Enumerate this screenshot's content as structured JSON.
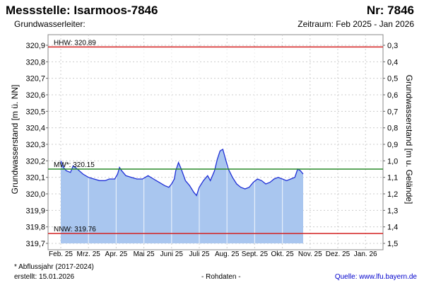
{
  "header": {
    "title_left": "Messstelle: Isarmoos-7846",
    "title_right": "Nr: 7846",
    "subtitle_left": "Grundwasserleiter:",
    "subtitle_right": "Zeitraum: Feb 2025 - Jan 2026"
  },
  "footer": {
    "note": "* Abflussjahr (2017-2024)",
    "created": "erstellt:  15.01.2026",
    "center": "- Rohdaten -",
    "source_label": "Quelle:",
    "source_link": "www.lfu.bayern.de"
  },
  "colors": {
    "line": "#1f2fd6",
    "fill": "#a9c6ef",
    "hhw": "#d42020",
    "nnw": "#d42020",
    "mw": "#2a8a2a",
    "grid": "#cccccc"
  },
  "chart_data": {
    "type": "area",
    "ylabel_left": "Grundwasserstand [m ü. NN]",
    "ylabel_right": "Grundwasserstand [m u. Gelände]",
    "ylim": [
      319.7,
      320.9
    ],
    "yticks_left": [
      "320,9",
      "320,8",
      "320,7",
      "320,6",
      "320,5",
      "320,4",
      "320,3",
      "320,2",
      "320,1",
      "320,0",
      "319,9",
      "319,8",
      "319,7"
    ],
    "yticks_right": [
      "0,3",
      "0,4",
      "0,5",
      "0,6",
      "0,7",
      "0,8",
      "0,9",
      "1,0",
      "1,1",
      "1,2",
      "1,3",
      "1,4",
      "1,5"
    ],
    "xticks": [
      "Feb. 25",
      "Mrz. 25",
      "Apr. 25",
      "Mai 25",
      "Juni 25",
      "Juli 25",
      "Aug. 25",
      "Sept. 25",
      "Okt. 25",
      "Nov. 25",
      "Dez. 25",
      "Jan. 26"
    ],
    "x_unit": "months since Feb. 25 (0 = Feb 2025)",
    "reference_lines": [
      {
        "key": "hhw",
        "label": "HHW: 320.89",
        "value": 320.89
      },
      {
        "key": "mw",
        "label": "MW*: 320.15",
        "value": 320.15
      },
      {
        "key": "nnw",
        "label": "NNW: 319.76",
        "value": 319.76
      }
    ],
    "series": [
      {
        "name": "Grundwasserstand",
        "points": [
          [
            0.0,
            320.2
          ],
          [
            0.1,
            320.16
          ],
          [
            0.2,
            320.14
          ],
          [
            0.35,
            320.13
          ],
          [
            0.45,
            320.17
          ],
          [
            0.6,
            320.15
          ],
          [
            0.8,
            320.12
          ],
          [
            1.0,
            320.1
          ],
          [
            1.2,
            320.09
          ],
          [
            1.4,
            320.08
          ],
          [
            1.6,
            320.08
          ],
          [
            1.75,
            320.09
          ],
          [
            1.95,
            320.09
          ],
          [
            2.05,
            320.12
          ],
          [
            2.12,
            320.16
          ],
          [
            2.2,
            320.14
          ],
          [
            2.35,
            320.11
          ],
          [
            2.55,
            320.1
          ],
          [
            2.75,
            320.09
          ],
          [
            2.95,
            320.09
          ],
          [
            3.15,
            320.11
          ],
          [
            3.35,
            320.09
          ],
          [
            3.55,
            320.07
          ],
          [
            3.75,
            320.05
          ],
          [
            3.9,
            320.04
          ],
          [
            4.0,
            320.06
          ],
          [
            4.1,
            320.09
          ],
          [
            4.15,
            320.14
          ],
          [
            4.25,
            320.19
          ],
          [
            4.35,
            320.15
          ],
          [
            4.5,
            320.08
          ],
          [
            4.65,
            320.05
          ],
          [
            4.8,
            320.01
          ],
          [
            4.9,
            319.99
          ],
          [
            5.0,
            320.04
          ],
          [
            5.15,
            320.08
          ],
          [
            5.3,
            320.11
          ],
          [
            5.4,
            320.08
          ],
          [
            5.55,
            320.14
          ],
          [
            5.65,
            320.21
          ],
          [
            5.75,
            320.26
          ],
          [
            5.85,
            320.27
          ],
          [
            5.95,
            320.21
          ],
          [
            6.05,
            320.15
          ],
          [
            6.2,
            320.1
          ],
          [
            6.35,
            320.06
          ],
          [
            6.5,
            320.04
          ],
          [
            6.65,
            320.03
          ],
          [
            6.8,
            320.04
          ],
          [
            6.95,
            320.07
          ],
          [
            7.1,
            320.09
          ],
          [
            7.25,
            320.08
          ],
          [
            7.4,
            320.06
          ],
          [
            7.55,
            320.07
          ],
          [
            7.7,
            320.09
          ],
          [
            7.85,
            320.1
          ],
          [
            8.0,
            320.09
          ],
          [
            8.15,
            320.08
          ],
          [
            8.3,
            320.09
          ],
          [
            8.45,
            320.1
          ],
          [
            8.55,
            320.15
          ],
          [
            8.65,
            320.14
          ],
          [
            8.75,
            320.12
          ]
        ]
      }
    ]
  }
}
